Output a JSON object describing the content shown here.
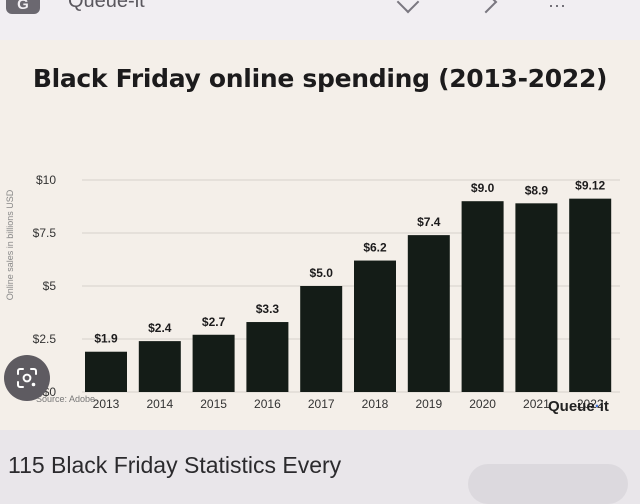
{
  "topbar": {
    "app_icon": "G",
    "site_name": "Queue-it",
    "icons": [
      "back-chevron-icon",
      "forward-chevron-icon",
      "more-dots-icon"
    ]
  },
  "card": {
    "source": "Source: Adobe",
    "brand": "Queue",
    "brand_dot": "·",
    "brand_suffix": "it"
  },
  "lens_button": {
    "icon": "google-lens-icon"
  },
  "headline": "115 Black Friday Statistics Every",
  "chart_data": {
    "type": "bar",
    "title": "Black Friday online spending (2013-2022)",
    "ylabel": "Online sales in billions USD",
    "xlabel": "",
    "categories": [
      "2013",
      "2014",
      "2015",
      "2016",
      "2017",
      "2018",
      "2019",
      "2020",
      "2021",
      "2022"
    ],
    "values": [
      1.9,
      2.4,
      2.7,
      3.3,
      5.0,
      6.2,
      7.4,
      9.0,
      8.9,
      9.12
    ],
    "value_labels": [
      "$1.9",
      "$2.4",
      "$2.7",
      "$3.3",
      "$5.0",
      "$6.2",
      "$7.4",
      "$9.0",
      "$8.9",
      "$9.12"
    ],
    "ylim": [
      0,
      10
    ],
    "yticks": [
      0,
      2.5,
      5,
      7.5,
      10
    ],
    "ytick_labels": [
      "$0",
      "$2.5",
      "$5",
      "$7.5",
      "$10"
    ],
    "grid": true,
    "bar_color": "#141c17"
  }
}
